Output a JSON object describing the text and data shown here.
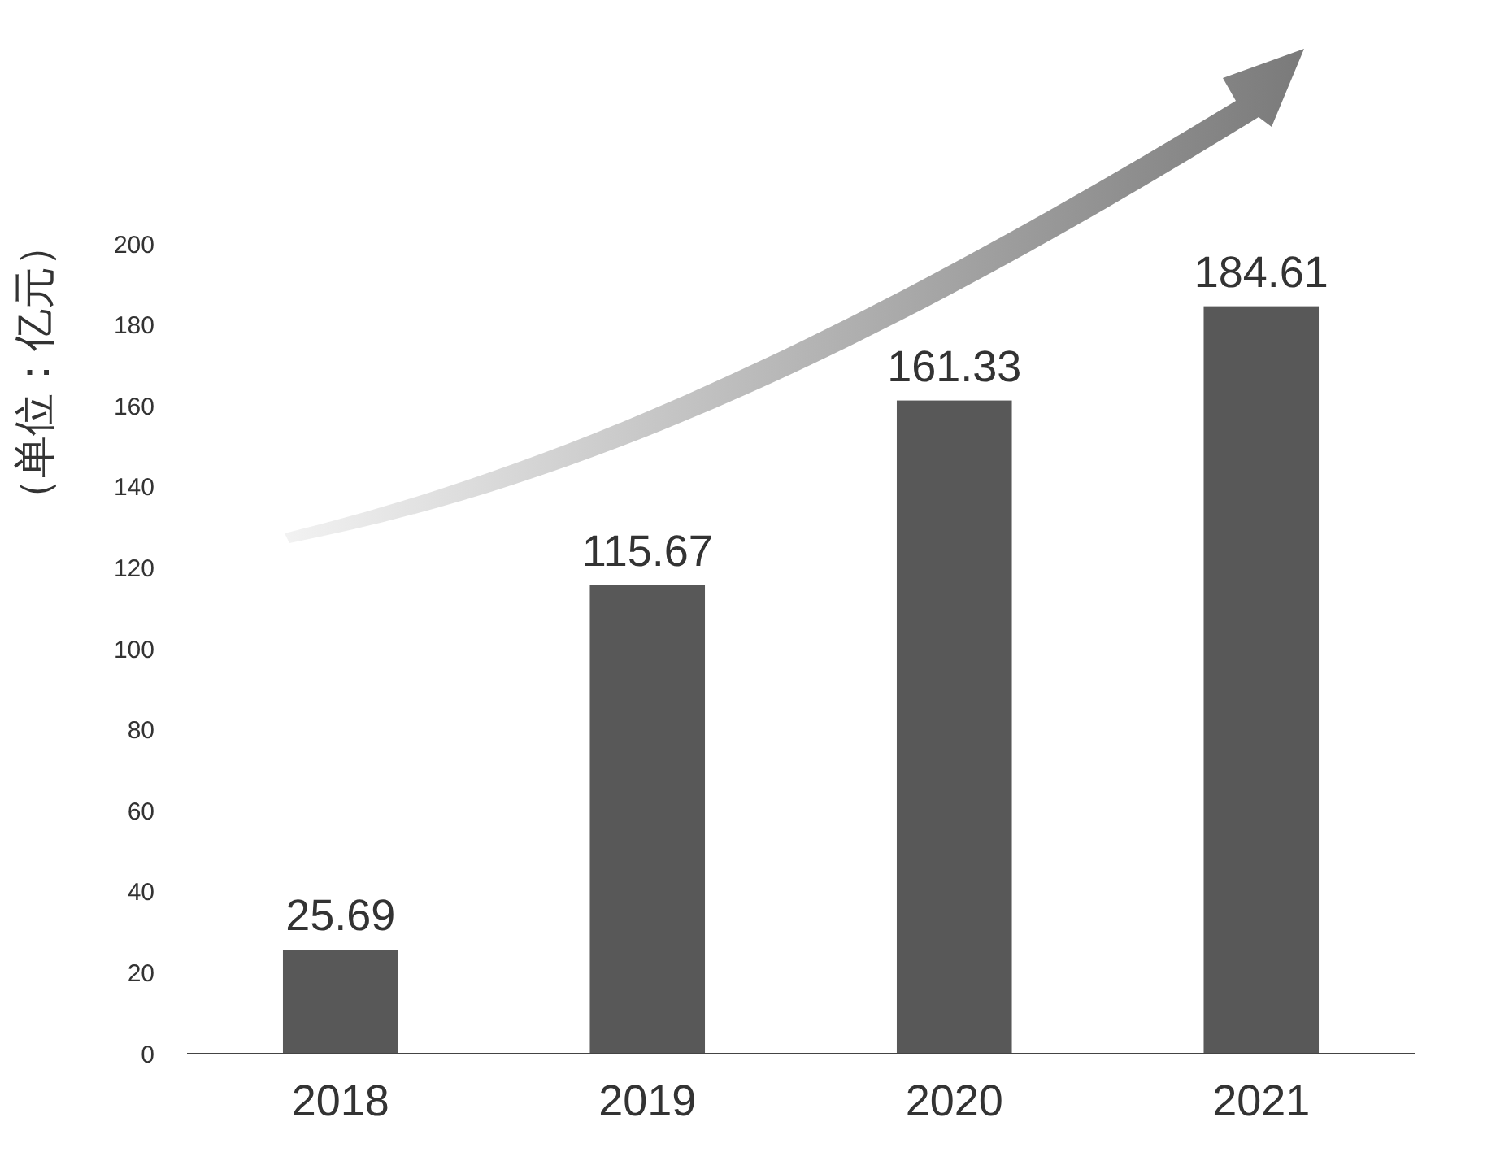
{
  "chart_data": {
    "type": "bar",
    "ylabel": "（单位：亿元）",
    "categories": [
      "2018",
      "2019",
      "2020",
      "2021"
    ],
    "values": [
      25.69,
      115.67,
      161.33,
      184.61
    ],
    "color": "#585858",
    "ylim": [
      0,
      200
    ],
    "yticks": [
      0,
      20,
      40,
      60,
      80,
      100,
      120,
      140,
      160,
      180,
      200
    ],
    "data_labels": true,
    "grid": false
  }
}
